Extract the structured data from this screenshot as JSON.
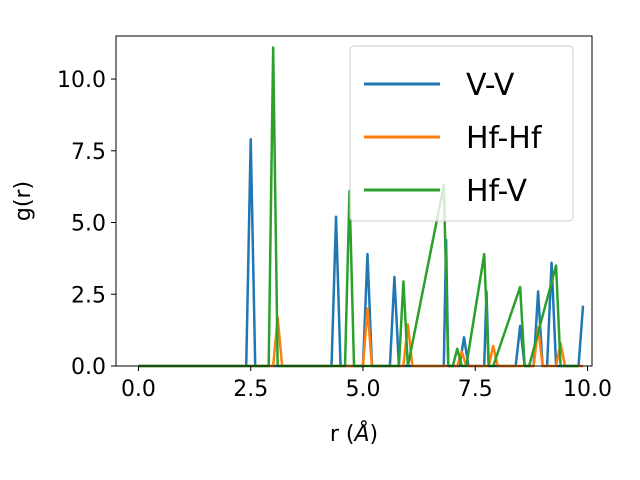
{
  "chart_data": {
    "type": "line",
    "title": "",
    "xlabel_main": "r (",
    "xlabel_unit": "Å",
    "xlabel_end": ")",
    "ylabel": "g(r)",
    "xlim": [
      -0.5,
      10.1
    ],
    "ylim": [
      0,
      11.5
    ],
    "x_ticks": [
      0.0,
      2.5,
      5.0,
      7.5,
      10.0
    ],
    "x_tick_labels": [
      "0.0",
      "2.5",
      "5.0",
      "7.5",
      "10.0"
    ],
    "y_ticks": [
      0.0,
      2.5,
      5.0,
      7.5,
      10.0
    ],
    "y_tick_labels": [
      "0.0",
      "2.5",
      "5.0",
      "7.5",
      "10.0"
    ],
    "grid": false,
    "legend_position": "upper right",
    "series": [
      {
        "name": "V-V",
        "color": "#1f77b4",
        "x": [
          0.0,
          2.4,
          2.5,
          2.6,
          4.3,
          4.4,
          4.5,
          5.0,
          5.1,
          5.2,
          5.6,
          5.7,
          5.8,
          6.8,
          6.85,
          6.9,
          7.15,
          7.25,
          7.35,
          7.7,
          7.75,
          7.8,
          8.4,
          8.5,
          8.6,
          8.8,
          8.9,
          9.0,
          9.1,
          9.2,
          9.3,
          9.8,
          9.9
        ],
        "y": [
          0.0,
          0.0,
          7.9,
          0.0,
          0.0,
          5.2,
          0.0,
          0.0,
          3.9,
          0.0,
          0.0,
          3.1,
          0.0,
          0.0,
          4.4,
          0.0,
          0.0,
          1.0,
          0.0,
          0.0,
          2.6,
          0.0,
          0.0,
          1.4,
          0.0,
          0.0,
          2.6,
          0.0,
          0.0,
          3.6,
          0.0,
          0.0,
          2.1
        ]
      },
      {
        "name": "Hf-Hf",
        "color": "#ff7f0e",
        "x": [
          0.0,
          3.0,
          3.1,
          3.2,
          5.0,
          5.1,
          5.2,
          5.9,
          6.0,
          6.1,
          7.1,
          7.2,
          7.3,
          7.8,
          7.9,
          8.0,
          8.8,
          8.9,
          9.0,
          9.3,
          9.4,
          9.5,
          9.9
        ],
        "y": [
          0.0,
          0.0,
          1.7,
          0.0,
          0.0,
          2.0,
          0.0,
          0.0,
          1.45,
          0.0,
          0.0,
          0.5,
          0.0,
          0.0,
          0.7,
          0.0,
          0.0,
          1.35,
          0.0,
          0.0,
          0.8,
          0.0,
          0.0
        ]
      },
      {
        "name": "Hf-V",
        "color": "#2ca02c",
        "x": [
          0.0,
          2.9,
          3.0,
          3.1,
          4.6,
          4.7,
          4.8,
          5.8,
          5.9,
          6.0,
          6.8,
          6.9,
          7.0,
          7.1,
          7.2,
          7.3,
          7.7,
          7.8,
          7.9,
          8.5,
          8.6,
          8.7,
          9.3,
          9.4,
          9.5,
          9.8
        ],
        "y": [
          0.0,
          0.0,
          11.1,
          0.0,
          0.0,
          6.1,
          0.0,
          0.0,
          2.95,
          0.0,
          6.3,
          0.0,
          0.0,
          0.6,
          0.0,
          0.0,
          3.9,
          0.0,
          0.0,
          2.75,
          0.0,
          0.0,
          3.5,
          0.0,
          0.0,
          0.0
        ]
      }
    ]
  }
}
